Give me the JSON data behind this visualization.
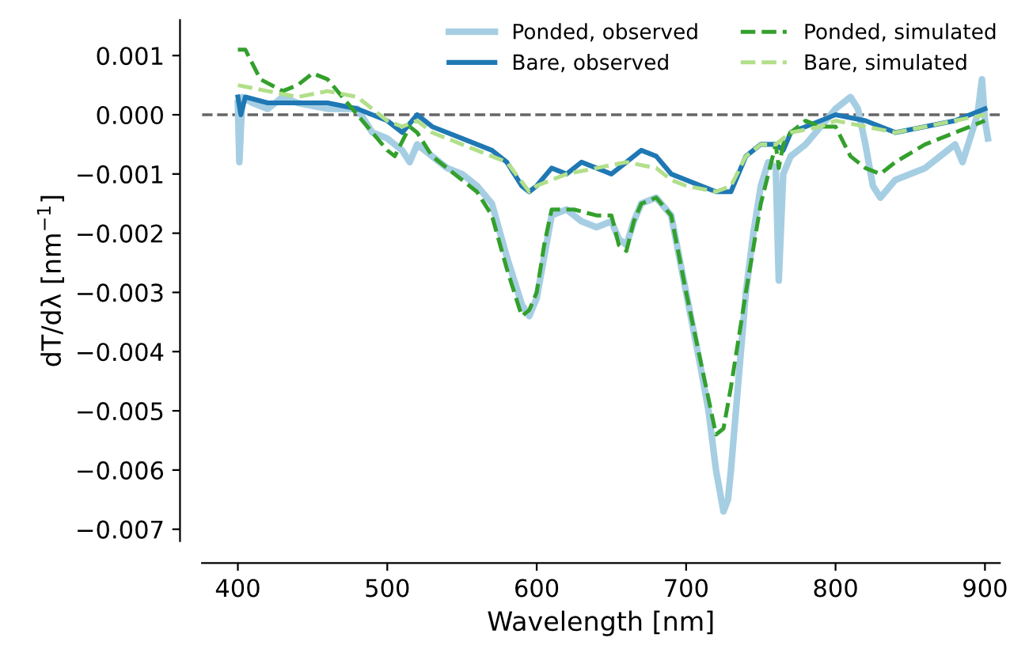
{
  "chart_data": {
    "type": "line",
    "xlabel": "Wavelength [nm]",
    "ylabel": "dT/dλ [nm$^{−1}$]",
    "xlim": [
      376,
      910
    ],
    "ylim": [
      -0.0072,
      0.0016
    ],
    "xticks": [
      400,
      500,
      600,
      700,
      800,
      900
    ],
    "yticks": [
      {
        "value": 0.001,
        "label": "0.001"
      },
      {
        "value": 0.0,
        "label": "0.000"
      },
      {
        "value": -0.001,
        "label": "−0.001"
      },
      {
        "value": -0.002,
        "label": "−0.002"
      },
      {
        "value": -0.003,
        "label": "−0.003"
      },
      {
        "value": -0.004,
        "label": "−0.004"
      },
      {
        "value": -0.005,
        "label": "−0.005"
      },
      {
        "value": -0.006,
        "label": "−0.006"
      },
      {
        "value": -0.007,
        "label": "−0.007"
      }
    ],
    "grid": false,
    "legend": "top right",
    "ref_lines": [
      {
        "axis": "y",
        "value": 0,
        "color": "#666666",
        "line_style": "dashed"
      }
    ],
    "series": [
      {
        "name": "Ponded, observed",
        "color": "#a6cee3",
        "line_style": "solid",
        "x": [
          400,
          401,
          403,
          410,
          420,
          430,
          440,
          460,
          480,
          490,
          500,
          510,
          515,
          520,
          530,
          540,
          550,
          560,
          570,
          580,
          590,
          595,
          600,
          605,
          610,
          620,
          630,
          640,
          650,
          655,
          660,
          665,
          670,
          680,
          690,
          700,
          710,
          715,
          720,
          725,
          728,
          730,
          735,
          740,
          745,
          750,
          755,
          760,
          762,
          765,
          770,
          780,
          790,
          800,
          810,
          815,
          820,
          825,
          830,
          840,
          850,
          860,
          870,
          880,
          885,
          890,
          895,
          898,
          900,
          902
        ],
        "values": [
          0.0002,
          -0.0008,
          0.0003,
          0.0002,
          0.0001,
          0.0003,
          0.0002,
          0.0001,
          0.0001,
          -0.0003,
          -0.0004,
          -0.0006,
          -0.0008,
          -0.0005,
          -0.0007,
          -0.0009,
          -0.001,
          -0.0012,
          -0.0015,
          -0.0024,
          -0.0032,
          -0.0034,
          -0.0031,
          -0.0024,
          -0.0017,
          -0.0016,
          -0.0018,
          -0.0019,
          -0.0018,
          -0.0021,
          -0.0022,
          -0.0018,
          -0.0015,
          -0.0014,
          -0.0017,
          -0.003,
          -0.0043,
          -0.005,
          -0.006,
          -0.0067,
          -0.0065,
          -0.006,
          -0.0045,
          -0.003,
          -0.002,
          -0.0012,
          -0.0008,
          -0.0009,
          -0.0028,
          -0.001,
          -0.0007,
          -0.0005,
          -0.0002,
          0.0001,
          0.0003,
          0.0001,
          -0.0005,
          -0.0012,
          -0.0014,
          -0.0011,
          -0.001,
          -0.0009,
          -0.0007,
          -0.0005,
          -0.0008,
          -0.0004,
          0.0,
          0.0006,
          -0.0001,
          -0.0004
        ]
      },
      {
        "name": "Bare, observed",
        "color": "#1f78b4",
        "line_style": "solid",
        "x": [
          400,
          402,
          405,
          420,
          440,
          460,
          480,
          500,
          510,
          520,
          530,
          550,
          570,
          580,
          590,
          595,
          600,
          610,
          620,
          630,
          640,
          650,
          660,
          670,
          680,
          690,
          700,
          710,
          720,
          730,
          740,
          750,
          760,
          765,
          770,
          780,
          800,
          820,
          840,
          860,
          880,
          900
        ],
        "values": [
          0.0003,
          0.0,
          0.0003,
          0.0002,
          0.0002,
          0.0002,
          0.0001,
          -0.0001,
          -0.0003,
          0.0,
          -0.0002,
          -0.0004,
          -0.0006,
          -0.0008,
          -0.0012,
          -0.0013,
          -0.0012,
          -0.0009,
          -0.001,
          -0.0008,
          -0.0009,
          -0.001,
          -0.0008,
          -0.0006,
          -0.0007,
          -0.001,
          -0.0011,
          -0.0012,
          -0.0013,
          -0.0013,
          -0.0007,
          -0.0005,
          -0.0005,
          -0.0006,
          -0.0003,
          -0.0002,
          0.0,
          -0.0001,
          -0.0003,
          -0.0002,
          -0.0001,
          0.0001
        ]
      },
      {
        "name": "Ponded, simulated",
        "color": "#33a02c",
        "line_style": "dashed",
        "x": [
          400,
          405,
          415,
          430,
          440,
          450,
          460,
          470,
          480,
          490,
          500,
          505,
          515,
          520,
          530,
          540,
          550,
          560,
          570,
          580,
          590,
          595,
          600,
          605,
          610,
          625,
          640,
          650,
          655,
          660,
          665,
          670,
          680,
          690,
          700,
          710,
          720,
          725,
          730,
          740,
          750,
          760,
          762,
          765,
          770,
          780,
          790,
          800,
          810,
          820,
          830,
          840,
          860,
          880,
          900
        ],
        "values": [
          0.0011,
          0.0011,
          0.0006,
          0.0004,
          0.0005,
          0.0007,
          0.0006,
          0.0003,
          0.0,
          -0.0003,
          -0.0006,
          -0.0007,
          -0.0002,
          -0.0003,
          -0.0007,
          -0.0009,
          -0.0011,
          -0.0013,
          -0.0017,
          -0.0026,
          -0.0034,
          -0.0033,
          -0.003,
          -0.0022,
          -0.0016,
          -0.0016,
          -0.0017,
          -0.0017,
          -0.0022,
          -0.0023,
          -0.0018,
          -0.0015,
          -0.0014,
          -0.0017,
          -0.003,
          -0.0042,
          -0.0054,
          -0.0053,
          -0.0046,
          -0.003,
          -0.0015,
          -0.0005,
          -0.0009,
          -0.0005,
          -0.0003,
          -0.0001,
          -0.0002,
          -0.0002,
          -0.0007,
          -0.0009,
          -0.001,
          -0.0008,
          -0.0005,
          -0.0003,
          -0.0001
        ]
      },
      {
        "name": "Bare, simulated",
        "color": "#b2df8a",
        "line_style": "dashed",
        "x": [
          400,
          420,
          440,
          460,
          480,
          500,
          510,
          520,
          530,
          550,
          580,
          595,
          600,
          620,
          640,
          660,
          680,
          690,
          700,
          720,
          730,
          740,
          750,
          760,
          770,
          790,
          800,
          820,
          840,
          860,
          880,
          900
        ],
        "values": [
          0.0005,
          0.0004,
          0.0003,
          0.0004,
          0.0003,
          -0.0001,
          -0.0002,
          -0.0001,
          -0.0003,
          -0.0005,
          -0.0008,
          -0.0013,
          -0.0012,
          -0.001,
          -0.0009,
          -0.0008,
          -0.0009,
          -0.0011,
          -0.0012,
          -0.0013,
          -0.0012,
          -0.0007,
          -0.0005,
          -0.0005,
          -0.0003,
          -0.0002,
          -0.0001,
          -0.0002,
          -0.0003,
          -0.0002,
          -0.0001,
          0.0
        ]
      }
    ]
  }
}
